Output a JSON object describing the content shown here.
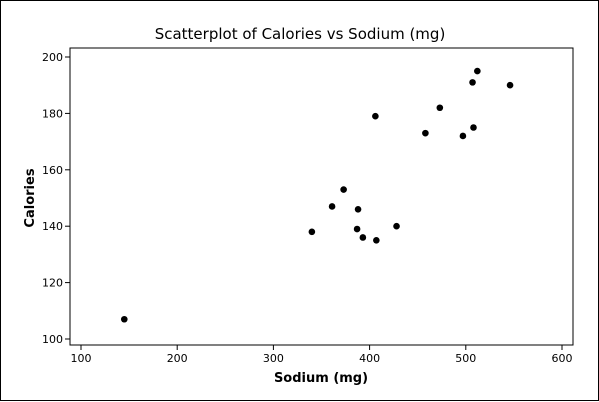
{
  "chart_data": {
    "type": "scatter",
    "title": "Scatterplot of Calories vs Sodium (mg)",
    "xlabel": "Sodium (mg)",
    "ylabel": "Calories",
    "xlim": [
      100,
      600
    ],
    "ylim": [
      100,
      200
    ],
    "xticks": [
      100,
      200,
      300,
      400,
      500,
      600
    ],
    "yticks": [
      100,
      120,
      140,
      160,
      180,
      200
    ],
    "grid": false,
    "marker_color": "#000000",
    "points": [
      {
        "x": 145,
        "y": 107
      },
      {
        "x": 340,
        "y": 138
      },
      {
        "x": 361,
        "y": 147
      },
      {
        "x": 373,
        "y": 153
      },
      {
        "x": 387,
        "y": 139
      },
      {
        "x": 388,
        "y": 146
      },
      {
        "x": 393,
        "y": 136
      },
      {
        "x": 406,
        "y": 179
      },
      {
        "x": 407,
        "y": 135
      },
      {
        "x": 428,
        "y": 140
      },
      {
        "x": 458,
        "y": 173
      },
      {
        "x": 473,
        "y": 182
      },
      {
        "x": 497,
        "y": 172
      },
      {
        "x": 507,
        "y": 191
      },
      {
        "x": 508,
        "y": 175
      },
      {
        "x": 512,
        "y": 195
      },
      {
        "x": 546,
        "y": 190
      }
    ]
  }
}
